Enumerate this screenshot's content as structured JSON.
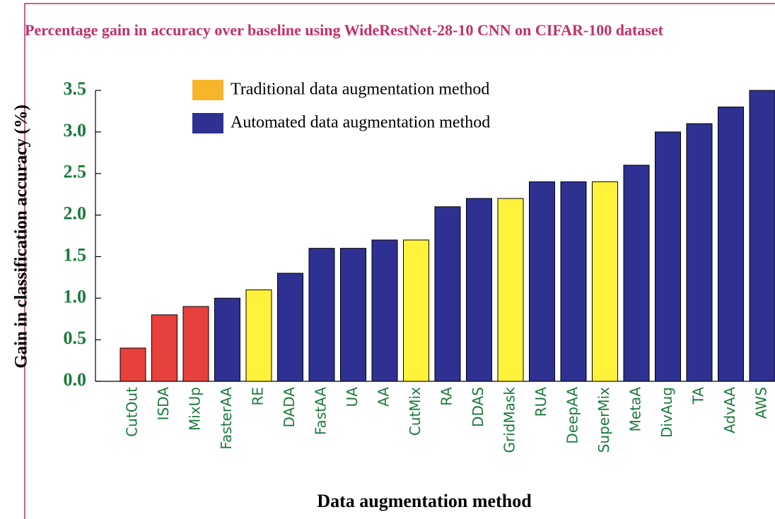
{
  "chart_data": {
    "type": "bar",
    "title": "Percentage gain in accuracy over baseline using WideRestNet-28-10 CNN on CIFAR-100 dataset",
    "x_label": "Data augmentation method",
    "y_label": "Gain in classification accuracy (%)",
    "categories": [
      "CutOut",
      "ISDA",
      "MixUp",
      "FasterAA",
      "RE",
      "DADA",
      "FastAA",
      "UA",
      "AA",
      "CutMix",
      "RA",
      "DDAS",
      "GridMask",
      "RUA",
      "DeepAA",
      "SuperMix",
      "MetaA",
      "DivAug",
      "TA",
      "AdvAA",
      "AWS"
    ],
    "values": [
      0.4,
      0.8,
      0.9,
      1.0,
      1.1,
      1.3,
      1.6,
      1.6,
      1.7,
      1.7,
      2.1,
      2.2,
      2.2,
      2.4,
      2.4,
      2.4,
      2.6,
      3.0,
      3.1,
      3.3,
      3.5
    ],
    "colors": [
      "#e8403c",
      "#e8403c",
      "#e8403c",
      "#2e3192",
      "#fff23a",
      "#2e3192",
      "#2e3192",
      "#2e3192",
      "#2e3192",
      "#fff23a",
      "#2e3192",
      "#2e3192",
      "#fff23a",
      "#2e3192",
      "#2e3192",
      "#fff23a",
      "#2e3192",
      "#2e3192",
      "#2e3192",
      "#2e3192",
      "#2e3192"
    ],
    "legend": [
      {
        "label": "Traditional data augmentation method",
        "color": "#f7b52c"
      },
      {
        "label": "Automated data augmentation method",
        "color": "#2e3192"
      }
    ],
    "ylim": [
      0,
      3.5
    ],
    "yticks": [
      {
        "value": 0,
        "label": "0.0"
      },
      {
        "value": 0.5,
        "label": "0.5"
      },
      {
        "value": 1,
        "label": "1.0"
      },
      {
        "value": 1.5,
        "label": "1.5"
      },
      {
        "value": 2,
        "label": "2.0"
      },
      {
        "value": 2.5,
        "label": "2.5"
      },
      {
        "value": 3,
        "label": "3.0"
      },
      {
        "value": 3.5,
        "label": "3.5"
      }
    ]
  }
}
